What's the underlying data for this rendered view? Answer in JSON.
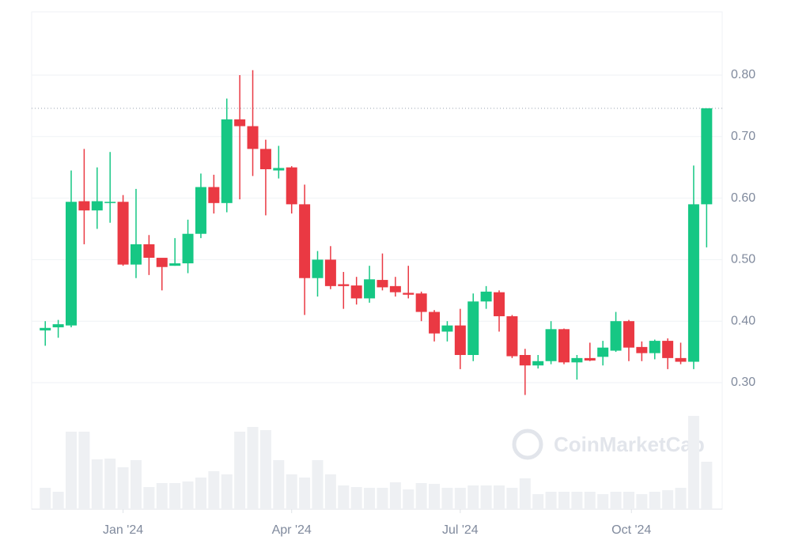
{
  "chart_data": {
    "type": "candlestick",
    "watermark": "CoinMarketCap",
    "up_color": "#16c784",
    "down_color": "#ea3943",
    "volume_color": "#eef0f3",
    "ylim": [
      0.1,
      0.9
    ],
    "yticks": [
      {
        "value": 0.3,
        "label": "0.30"
      },
      {
        "value": 0.4,
        "label": "0.40"
      },
      {
        "value": 0.5,
        "label": "0.50"
      },
      {
        "value": 0.6,
        "label": "0.60"
      },
      {
        "value": 0.7,
        "label": "0.70"
      },
      {
        "value": 0.8,
        "label": "0.80"
      }
    ],
    "xlim": [
      -1.05,
      52.2
    ],
    "xticks": [
      {
        "value": 6,
        "label": "Jan '24"
      },
      {
        "value": 19,
        "label": "Apr '24"
      },
      {
        "value": 32,
        "label": "Jul '24"
      },
      {
        "value": 45.2,
        "label": "Oct '24"
      }
    ],
    "current_price": 0.746,
    "grid": true,
    "open": [
      0.385,
      0.39,
      0.393,
      0.595,
      0.58,
      0.592,
      0.594,
      0.492,
      0.525,
      0.503,
      0.49,
      0.494,
      0.542,
      0.618,
      0.592,
      0.728,
      0.717,
      0.68,
      0.645,
      0.65,
      0.59,
      0.47,
      0.5,
      0.46,
      0.458,
      0.437,
      0.467,
      0.457,
      0.446,
      0.445,
      0.415,
      0.383,
      0.393,
      0.345,
      0.432,
      0.447,
      0.408,
      0.345,
      0.328,
      0.335,
      0.387,
      0.333,
      0.34,
      0.342,
      0.352,
      0.4,
      0.358,
      0.348,
      0.368,
      0.34,
      0.334,
      0.59
    ],
    "high": [
      0.4,
      0.402,
      0.645,
      0.68,
      0.65,
      0.675,
      0.605,
      0.615,
      0.54,
      0.5,
      0.535,
      0.565,
      0.64,
      0.638,
      0.762,
      0.8,
      0.808,
      0.695,
      0.685,
      0.652,
      0.622,
      0.514,
      0.522,
      0.48,
      0.472,
      0.49,
      0.51,
      0.472,
      0.49,
      0.448,
      0.418,
      0.4,
      0.42,
      0.445,
      0.457,
      0.45,
      0.41,
      0.355,
      0.345,
      0.4,
      0.388,
      0.345,
      0.365,
      0.368,
      0.415,
      0.402,
      0.367,
      0.37,
      0.372,
      0.365,
      0.653,
      0.746
    ],
    "low": [
      0.36,
      0.373,
      0.39,
      0.525,
      0.55,
      0.56,
      0.49,
      0.47,
      0.475,
      0.45,
      0.49,
      0.478,
      0.535,
      0.575,
      0.577,
      0.598,
      0.636,
      0.572,
      0.632,
      0.575,
      0.41,
      0.44,
      0.452,
      0.42,
      0.427,
      0.43,
      0.45,
      0.44,
      0.437,
      0.4,
      0.367,
      0.367,
      0.322,
      0.335,
      0.42,
      0.383,
      0.34,
      0.28,
      0.323,
      0.33,
      0.33,
      0.305,
      0.335,
      0.328,
      0.35,
      0.335,
      0.335,
      0.338,
      0.322,
      0.33,
      0.322,
      0.52
    ],
    "close": [
      0.389,
      0.395,
      0.594,
      0.58,
      0.595,
      0.594,
      0.492,
      0.525,
      0.503,
      0.488,
      0.494,
      0.542,
      0.618,
      0.592,
      0.728,
      0.717,
      0.68,
      0.647,
      0.649,
      0.59,
      0.47,
      0.5,
      0.457,
      0.457,
      0.437,
      0.468,
      0.455,
      0.447,
      0.443,
      0.415,
      0.38,
      0.393,
      0.345,
      0.432,
      0.448,
      0.408,
      0.343,
      0.328,
      0.335,
      0.387,
      0.333,
      0.34,
      0.336,
      0.357,
      0.4,
      0.357,
      0.348,
      0.368,
      0.34,
      0.334,
      0.59,
      0.746
    ],
    "volume": [
      27,
      22,
      98,
      98,
      63,
      64,
      53,
      62,
      28,
      33,
      33,
      35,
      40,
      48,
      44,
      98,
      104,
      100,
      62,
      44,
      40,
      62,
      44,
      30,
      28,
      27,
      27,
      34,
      25,
      33,
      32,
      27,
      27,
      30,
      30,
      30,
      27,
      39,
      19,
      22,
      22,
      22,
      22,
      19,
      22,
      22,
      19,
      22,
      24,
      27,
      118,
      60
    ]
  }
}
